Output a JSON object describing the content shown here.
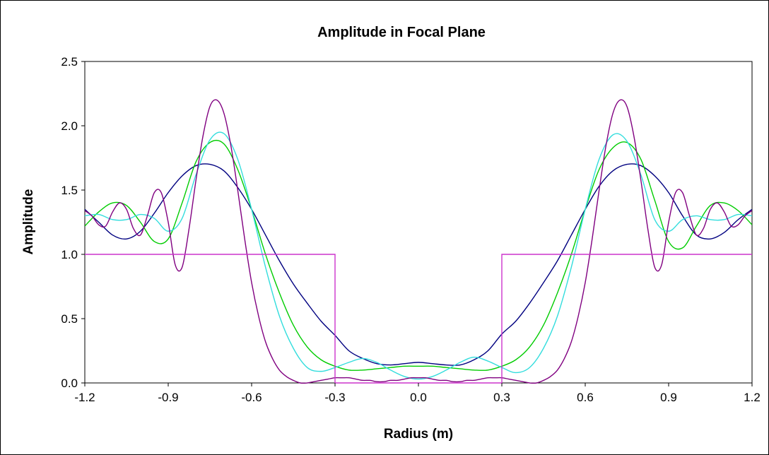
{
  "chart_data": {
    "type": "line",
    "title": "Amplitude in Focal Plane",
    "xlabel": "Radius (m)",
    "ylabel": "Amplitude",
    "xlim": [
      -1.2,
      1.2
    ],
    "ylim": [
      0,
      2.5
    ],
    "grid": false,
    "legend": "none",
    "x_ticks": [
      "-1.2",
      "-0.9",
      "-0.6",
      "-0.3",
      "0.0",
      "0.3",
      "0.6",
      "0.9",
      "1.2"
    ],
    "y_ticks": [
      "0.0",
      "0.5",
      "1.0",
      "1.5",
      "2.0",
      "2.5"
    ],
    "series": [
      {
        "color": "#000080",
        "x": [
          -1.2,
          -1.15,
          -1.1,
          -1.05,
          -1.0,
          -0.95,
          -0.9,
          -0.85,
          -0.8,
          -0.75,
          -0.7,
          -0.65,
          -0.6,
          -0.55,
          -0.5,
          -0.45,
          -0.4,
          -0.35,
          -0.3,
          -0.25,
          -0.2,
          -0.15,
          -0.1,
          -0.05,
          0.0,
          0.05,
          0.1,
          0.15,
          0.2,
          0.25,
          0.3,
          0.35,
          0.4,
          0.45,
          0.5,
          0.55,
          0.6,
          0.65,
          0.7,
          0.75,
          0.8,
          0.85,
          0.9,
          0.95,
          1.0,
          1.05,
          1.1,
          1.15,
          1.2
        ],
        "y": [
          1.35,
          1.25,
          1.15,
          1.12,
          1.18,
          1.32,
          1.48,
          1.61,
          1.69,
          1.7,
          1.65,
          1.52,
          1.35,
          1.15,
          0.95,
          0.77,
          0.62,
          0.48,
          0.37,
          0.25,
          0.19,
          0.15,
          0.14,
          0.15,
          0.16,
          0.15,
          0.14,
          0.14,
          0.18,
          0.25,
          0.38,
          0.48,
          0.62,
          0.78,
          0.95,
          1.15,
          1.35,
          1.53,
          1.65,
          1.7,
          1.69,
          1.61,
          1.48,
          1.3,
          1.15,
          1.12,
          1.17,
          1.27,
          1.35
        ]
      },
      {
        "color": "#00cc00",
        "x": [
          -1.2,
          -1.15,
          -1.1,
          -1.05,
          -1.0,
          -0.95,
          -0.9,
          -0.85,
          -0.8,
          -0.75,
          -0.7,
          -0.65,
          -0.6,
          -0.55,
          -0.5,
          -0.45,
          -0.4,
          -0.35,
          -0.3,
          -0.25,
          -0.2,
          -0.15,
          -0.1,
          -0.05,
          0.0,
          0.05,
          0.1,
          0.15,
          0.2,
          0.25,
          0.3,
          0.35,
          0.4,
          0.45,
          0.5,
          0.55,
          0.6,
          0.65,
          0.7,
          0.75,
          0.8,
          0.85,
          0.9,
          0.95,
          1.0,
          1.05,
          1.1,
          1.15,
          1.2
        ],
        "y": [
          1.22,
          1.33,
          1.4,
          1.38,
          1.25,
          1.1,
          1.12,
          1.4,
          1.72,
          1.87,
          1.86,
          1.66,
          1.35,
          1.0,
          0.7,
          0.45,
          0.28,
          0.18,
          0.13,
          0.1,
          0.1,
          0.11,
          0.12,
          0.13,
          0.13,
          0.13,
          0.12,
          0.11,
          0.1,
          0.1,
          0.13,
          0.18,
          0.28,
          0.45,
          0.7,
          1.0,
          1.35,
          1.66,
          1.83,
          1.87,
          1.74,
          1.42,
          1.1,
          1.05,
          1.22,
          1.38,
          1.4,
          1.34,
          1.23
        ]
      },
      {
        "color": "#33dddd",
        "x": [
          -1.2,
          -1.15,
          -1.1,
          -1.05,
          -1.0,
          -0.95,
          -0.9,
          -0.85,
          -0.8,
          -0.75,
          -0.7,
          -0.65,
          -0.6,
          -0.55,
          -0.5,
          -0.45,
          -0.4,
          -0.35,
          -0.3,
          -0.25,
          -0.2,
          -0.15,
          -0.1,
          -0.05,
          0.0,
          0.05,
          0.1,
          0.15,
          0.2,
          0.25,
          0.3,
          0.35,
          0.4,
          0.45,
          0.5,
          0.55,
          0.6,
          0.65,
          0.7,
          0.75,
          0.8,
          0.85,
          0.9,
          0.95,
          1.0,
          1.05,
          1.1,
          1.15,
          1.2
        ],
        "y": [
          1.3,
          1.31,
          1.27,
          1.27,
          1.31,
          1.28,
          1.18,
          1.28,
          1.62,
          1.89,
          1.94,
          1.74,
          1.35,
          0.9,
          0.52,
          0.27,
          0.12,
          0.09,
          0.12,
          0.16,
          0.19,
          0.16,
          0.1,
          0.05,
          0.03,
          0.05,
          0.1,
          0.16,
          0.2,
          0.17,
          0.12,
          0.08,
          0.12,
          0.27,
          0.52,
          0.9,
          1.35,
          1.74,
          1.93,
          1.88,
          1.62,
          1.27,
          1.18,
          1.27,
          1.3,
          1.27,
          1.27,
          1.31,
          1.3
        ]
      },
      {
        "color": "#800080",
        "x": [
          -1.2,
          -1.175,
          -1.15,
          -1.125,
          -1.1,
          -1.075,
          -1.05,
          -1.025,
          -1.0,
          -0.975,
          -0.95,
          -0.925,
          -0.9,
          -0.875,
          -0.85,
          -0.825,
          -0.8,
          -0.775,
          -0.75,
          -0.725,
          -0.7,
          -0.675,
          -0.65,
          -0.625,
          -0.6,
          -0.575,
          -0.55,
          -0.525,
          -0.5,
          -0.475,
          -0.45,
          -0.425,
          -0.4,
          -0.375,
          -0.35,
          -0.325,
          -0.3,
          -0.275,
          -0.25,
          -0.225,
          -0.2,
          -0.175,
          -0.15,
          -0.125,
          -0.1,
          -0.075,
          -0.05,
          -0.025,
          0.0,
          0.025,
          0.05,
          0.075,
          0.1,
          0.125,
          0.15,
          0.175,
          0.2,
          0.225,
          0.25,
          0.275,
          0.3,
          0.325,
          0.35,
          0.375,
          0.4,
          0.425,
          0.45,
          0.475,
          0.5,
          0.525,
          0.55,
          0.575,
          0.6,
          0.625,
          0.65,
          0.675,
          0.7,
          0.725,
          0.75,
          0.775,
          0.8,
          0.825,
          0.85,
          0.875,
          0.9,
          0.925,
          0.95,
          0.975,
          1.0,
          1.025,
          1.05,
          1.075,
          1.1,
          1.125,
          1.15,
          1.175,
          1.2
        ],
        "y": [
          1.34,
          1.3,
          1.23,
          1.22,
          1.33,
          1.4,
          1.35,
          1.2,
          1.15,
          1.3,
          1.48,
          1.48,
          1.25,
          0.92,
          0.9,
          1.2,
          1.58,
          1.92,
          2.15,
          2.2,
          2.1,
          1.85,
          1.5,
          1.12,
          0.78,
          0.52,
          0.32,
          0.19,
          0.1,
          0.05,
          0.02,
          0.0,
          0.0,
          0.01,
          0.02,
          0.03,
          0.04,
          0.04,
          0.04,
          0.03,
          0.02,
          0.02,
          0.01,
          0.01,
          0.02,
          0.02,
          0.03,
          0.04,
          0.04,
          0.04,
          0.03,
          0.02,
          0.02,
          0.01,
          0.01,
          0.02,
          0.02,
          0.03,
          0.04,
          0.04,
          0.04,
          0.03,
          0.02,
          0.01,
          0.0,
          0.0,
          0.02,
          0.05,
          0.1,
          0.19,
          0.32,
          0.52,
          0.78,
          1.12,
          1.5,
          1.85,
          2.1,
          2.2,
          2.15,
          1.92,
          1.58,
          1.2,
          0.9,
          0.92,
          1.25,
          1.48,
          1.48,
          1.3,
          1.15,
          1.2,
          1.35,
          1.4,
          1.33,
          1.22,
          1.23,
          1.3,
          1.34
        ]
      },
      {
        "color": "#cc33cc",
        "x": [
          -1.2,
          -0.3,
          -0.3,
          0.3,
          0.3,
          1.2
        ],
        "y": [
          1.0,
          1.0,
          0.0,
          0.0,
          1.0,
          1.0
        ]
      }
    ]
  }
}
